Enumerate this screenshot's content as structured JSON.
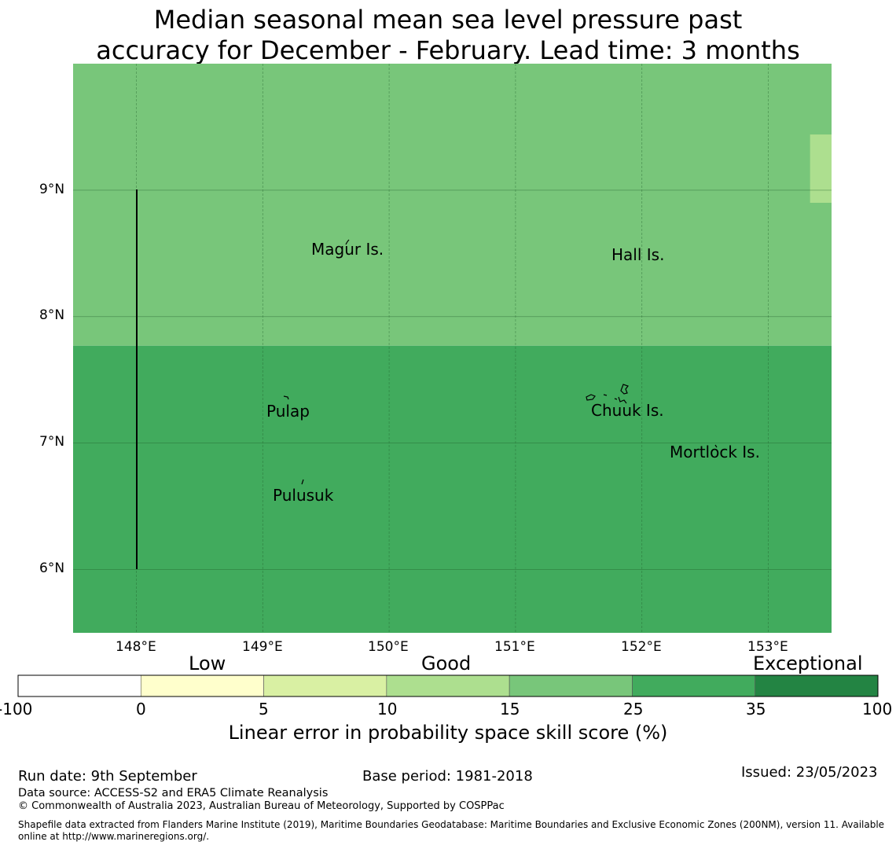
{
  "title": {
    "line1": "Median seasonal mean sea level pressure past",
    "line2": "accuracy for December - February. Lead time: 3 months"
  },
  "map": {
    "lon_ticks": [
      "148°E",
      "149°E",
      "150°E",
      "151°E",
      "152°E",
      "153°E"
    ],
    "lat_ticks": [
      "9°N",
      "8°N",
      "7°N",
      "6°N"
    ],
    "lon_range": [
      147.5,
      153.5
    ],
    "lat_range": [
      5.5,
      10.0
    ],
    "regions": [
      {
        "lat_min": 7.77,
        "lat_max": 10.0,
        "lon_min": 147.5,
        "lon_max": 153.5,
        "skill_band": "15-25",
        "color": "#78c67a"
      },
      {
        "lat_min": 5.5,
        "lat_max": 7.77,
        "lon_min": 147.5,
        "lon_max": 153.5,
        "skill_band": "25-35",
        "color": "#41ab5d"
      },
      {
        "lat_min": 8.9,
        "lat_max": 9.44,
        "lon_min": 153.33,
        "lon_max": 153.5,
        "skill_band": "10-15",
        "color": "#addf8f"
      }
    ],
    "places": [
      {
        "name": "Magur Is."
      },
      {
        "name": "Hall Is."
      },
      {
        "name": "Pulap"
      },
      {
        "name": "Chuuk Is."
      },
      {
        "name": "Mortlock Is."
      },
      {
        "name": "Pulusuk"
      }
    ]
  },
  "colorbar": {
    "categories": [
      "Low",
      "Good",
      "Exceptional"
    ],
    "boundaries": [
      "-100",
      "0",
      "5",
      "10",
      "15",
      "25",
      "35",
      "100"
    ],
    "colors": [
      "#ffffff",
      "#ffffcc",
      "#d9f0a3",
      "#addf8f",
      "#78c67a",
      "#41ab5d",
      "#238443"
    ],
    "title": "Linear error in probability space skill score (%)"
  },
  "footer": {
    "run_date": "Run date: 9th September",
    "base_period": "Base period: 1981-2018",
    "issued": "Issued: 23/05/2023",
    "data_source": "Data source: ACCESS-S2 and ERA5 Climate Reanalysis",
    "copyright": "© Commonwealth of Australia 2023, Australian Bureau of Meteorology, Supported by COSPPac",
    "shapefile_line1": "Shapefile data extracted from Flanders Marine Institute (2019), Maritime Boundaries Geodatabase: Maritime Boundaries and Exclusive Economic Zones (200NM), version 11. Available",
    "shapefile_line2": "online at http://www.marineregions.org/."
  }
}
